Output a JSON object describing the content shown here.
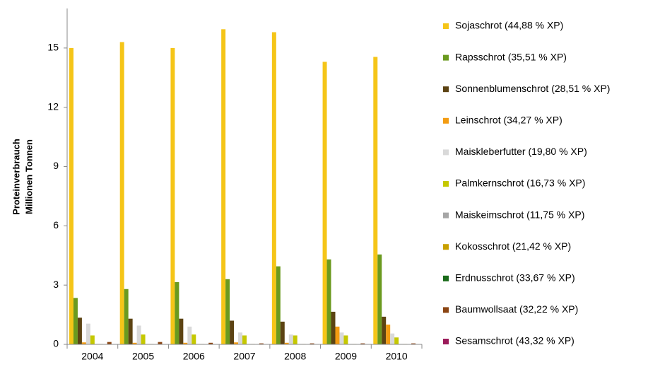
{
  "chart_data": {
    "type": "bar",
    "ylabel": [
      "Proteinverbrauch",
      "Millionen Tonnen"
    ],
    "categories": [
      "2004",
      "2005",
      "2006",
      "2007",
      "2008",
      "2009",
      "2010"
    ],
    "ylim": [
      0,
      17
    ],
    "yticks": [
      0,
      3,
      6,
      9,
      12,
      15
    ],
    "legend": "right",
    "series": [
      {
        "name": "Sojaschrot (44,88 % XP)",
        "color": "#f5c518",
        "values": [
          15.0,
          15.3,
          15.0,
          15.95,
          15.8,
          14.3,
          14.55
        ]
      },
      {
        "name": "Rapsschrot (35,51 % XP)",
        "color": "#6a9a1f",
        "values": [
          2.35,
          2.8,
          3.15,
          3.3,
          3.95,
          4.3,
          4.55
        ]
      },
      {
        "name": "Sonnenblumenschrot (28,51 % XP)",
        "color": "#5c4313",
        "values": [
          1.35,
          1.3,
          1.3,
          1.2,
          1.15,
          1.65,
          1.4
        ]
      },
      {
        "name": "Leinschrot (34,27 % XP)",
        "color": "#f39c12",
        "values": [
          0.1,
          0.08,
          0.08,
          0.1,
          0.08,
          0.9,
          1.0
        ]
      },
      {
        "name": "Maiskleberfutter (19,80 % XP)",
        "color": "#d9d9d9",
        "values": [
          1.05,
          0.95,
          0.9,
          0.6,
          0.5,
          0.6,
          0.55
        ]
      },
      {
        "name": "Palmkernschrot (16,73 % XP)",
        "color": "#c5c800",
        "values": [
          0.45,
          0.5,
          0.5,
          0.45,
          0.45,
          0.45,
          0.35
        ]
      },
      {
        "name": "Maiskeimschrot (11,75 % XP)",
        "color": "#a6a6a6",
        "values": [
          0.02,
          0.02,
          0.02,
          0.02,
          0.02,
          0.02,
          0.02
        ]
      },
      {
        "name": "Kokosschrot (21,42 % XP)",
        "color": "#c8a000",
        "values": [
          0.02,
          0.02,
          0.02,
          0.02,
          0.02,
          0.02,
          0.02
        ]
      },
      {
        "name": "Erdnusschrot (33,67 % XP)",
        "color": "#1a6b1a",
        "values": [
          0.01,
          0.01,
          0.01,
          0.01,
          0.01,
          0.01,
          0.01
        ]
      },
      {
        "name": "Baumwollsaat (32,22 % XP)",
        "color": "#8b4513",
        "values": [
          0.12,
          0.12,
          0.08,
          0.05,
          0.05,
          0.05,
          0.05
        ]
      },
      {
        "name": "Sesamschrot (43,32 % XP)",
        "color": "#9b1b5a",
        "values": [
          0.01,
          0.01,
          0.01,
          0.01,
          0.01,
          0.01,
          0.01
        ]
      }
    ]
  }
}
